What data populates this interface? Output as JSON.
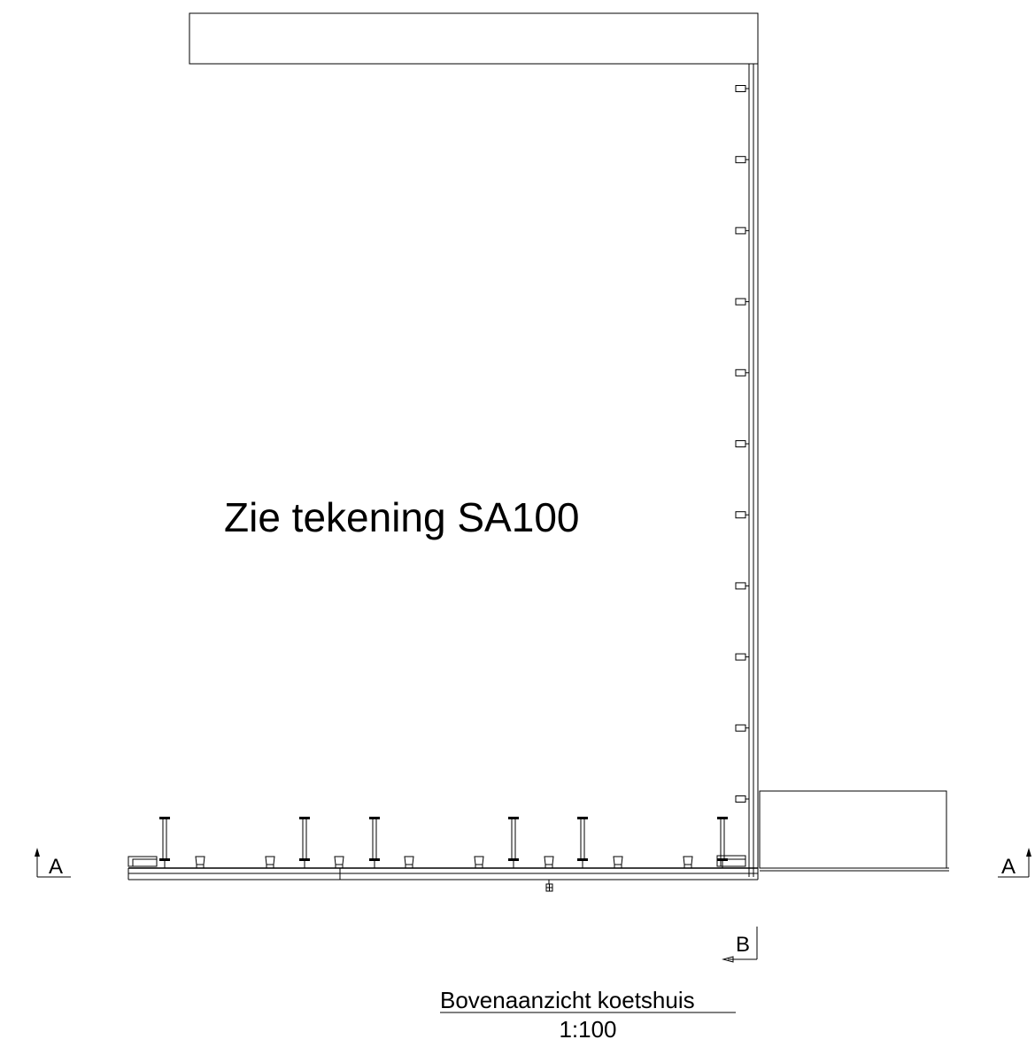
{
  "drawing": {
    "note": "Zie tekening SA100",
    "title": "Bovenaanzicht koetshuis",
    "scale": "1:100",
    "section_a_left": "A",
    "section_a_right": "A",
    "section_b": "B"
  }
}
